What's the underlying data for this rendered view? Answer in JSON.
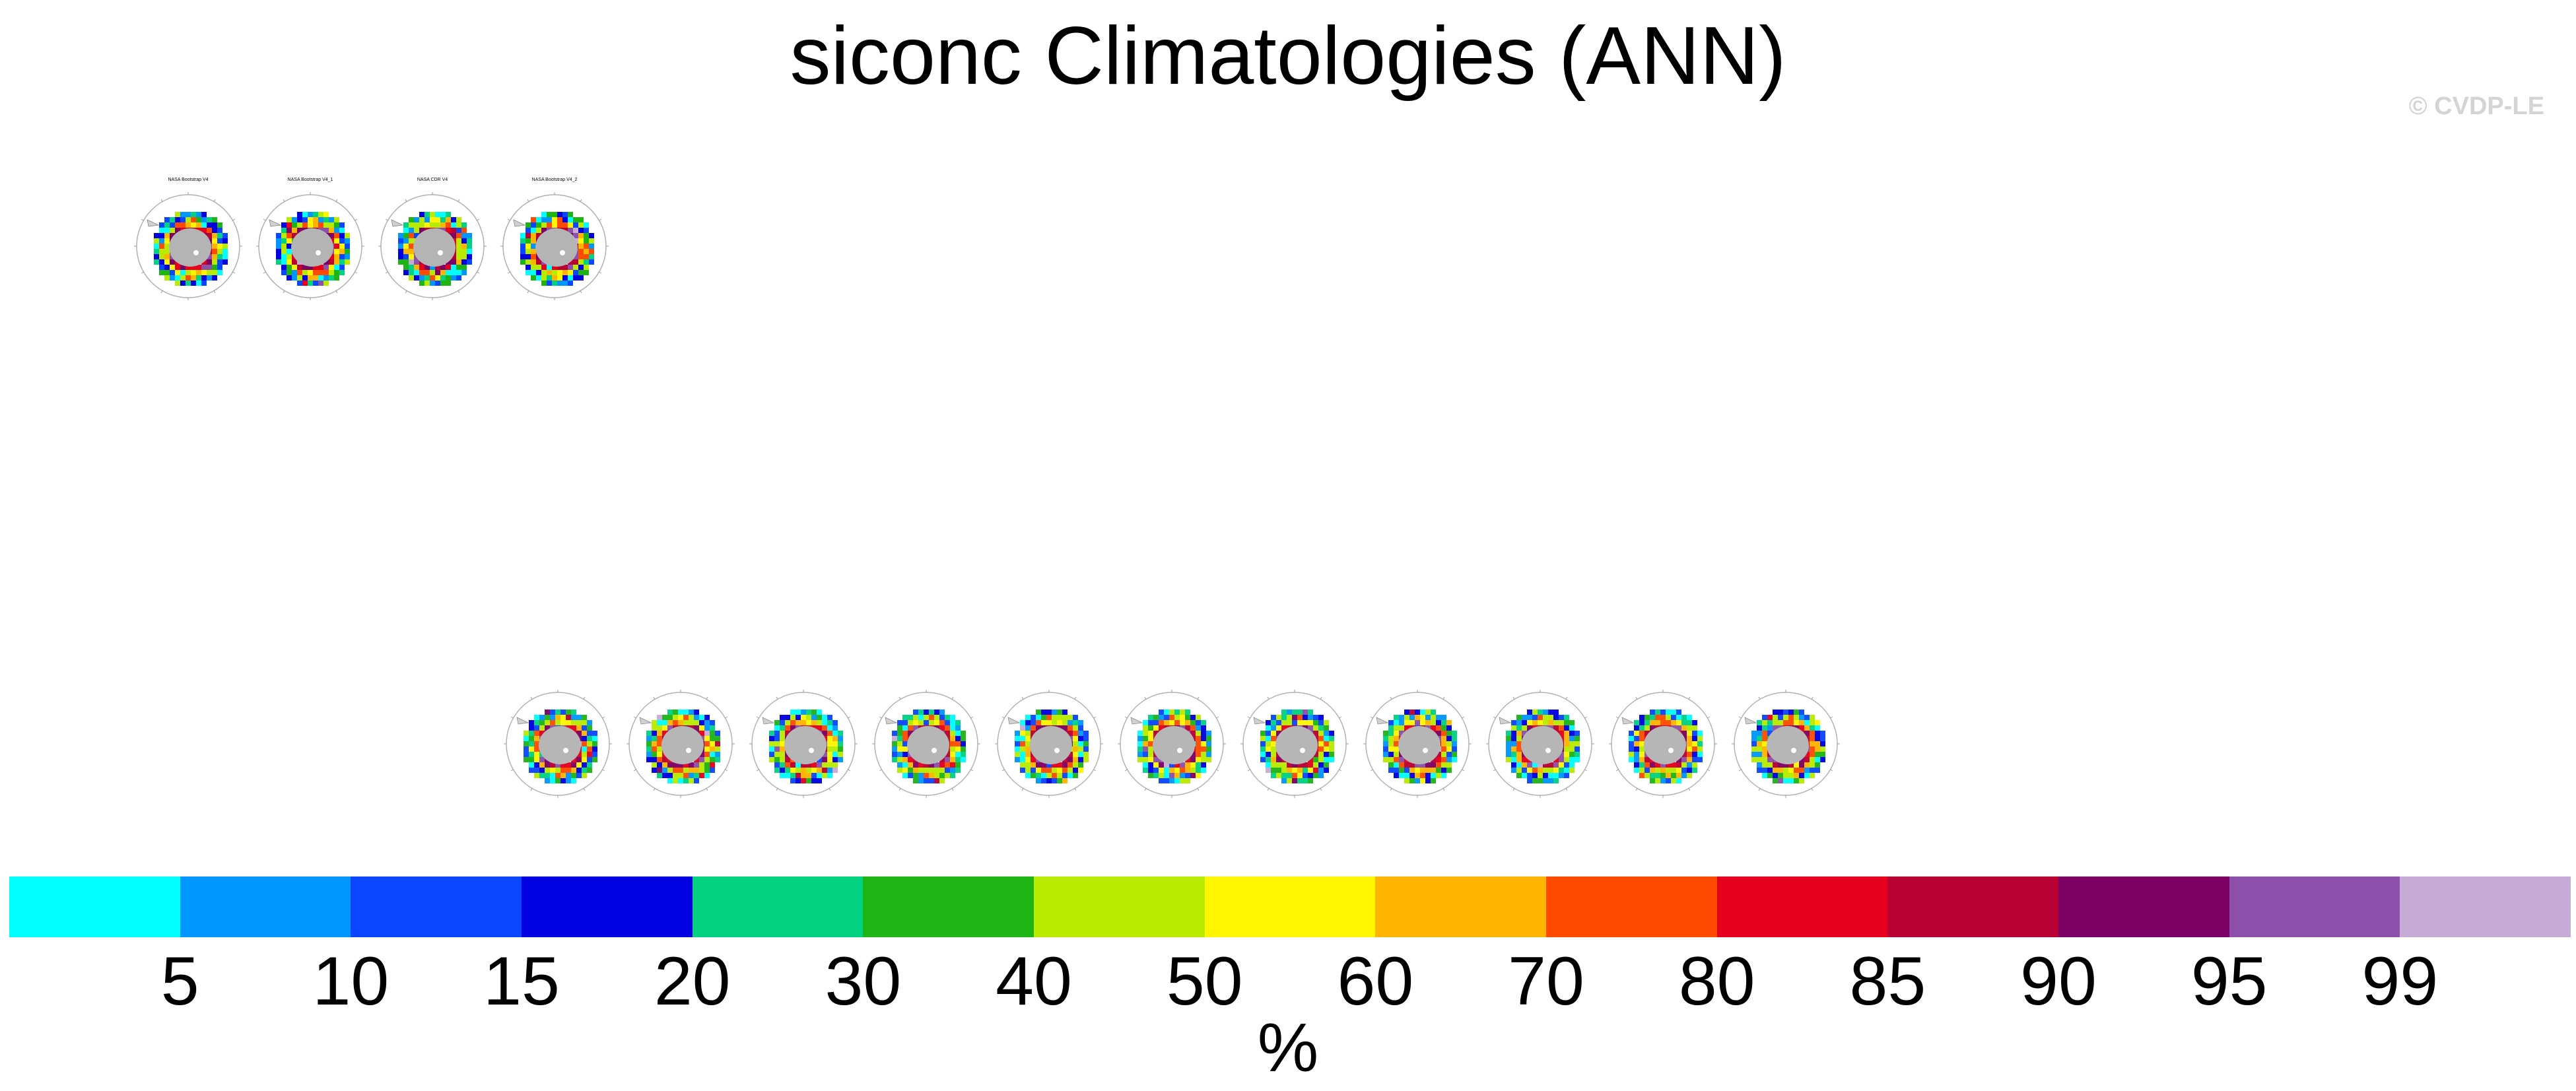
{
  "title": "siconc Climatologies (ANN)",
  "watermark": "© CVDP-LE",
  "chart_data": {
    "type": "heatmap",
    "title": "siconc Climatologies (ANN)",
    "region": "Antarctic polar stereographic maps",
    "observation_panels": [
      {
        "label": "NASA Bootstrap V4"
      },
      {
        "label": "NASA Bootstrap V4_1"
      },
      {
        "label": "NASA CDR V4"
      },
      {
        "label": "NASA Bootstrap V4_2"
      }
    ],
    "model_panel_count": 11,
    "colorbar": {
      "units": "%",
      "ticks": [
        5,
        10,
        15,
        20,
        30,
        40,
        50,
        60,
        70,
        80,
        85,
        90,
        95,
        99
      ],
      "tick_labels": [
        "5",
        "10",
        "15",
        "20",
        "30",
        "40",
        "50",
        "60",
        "70",
        "80",
        "85",
        "90",
        "95",
        "99"
      ],
      "colors": [
        "#00ffff",
        "#0096ff",
        "#0a46ff",
        "#0000e1",
        "#00d282",
        "#1eb414",
        "#b9eb00",
        "#fff500",
        "#ffb400",
        "#ff4b00",
        "#e6001e",
        "#b90032",
        "#7d0064",
        "#8c50aa",
        "#c8aad7"
      ]
    }
  }
}
